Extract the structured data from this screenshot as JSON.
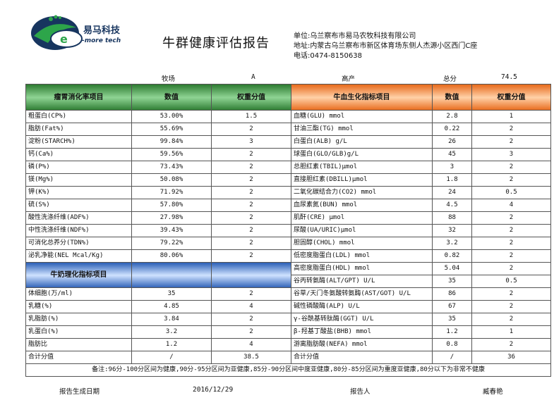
{
  "header": {
    "logo_text_cn": "易马科技",
    "logo_text_en": "-more tech",
    "title": "牛群健康评估报告",
    "company_line": "单位:乌兰察布市易马农牧科技有限公司",
    "address_line": "地址:内蒙古乌兰察布市新区体育场东侧人杰源小区西门C座",
    "phone_line": "电话:0474-8150638"
  },
  "meta": {
    "farm_label": "牧场",
    "farm_value": "A",
    "stage_value": "高产",
    "total_label": "总分",
    "total_value": "74.5"
  },
  "left_headers": {
    "item": "瘤胃消化率项目",
    "value": "数值",
    "weight": "权重分值"
  },
  "right_headers": {
    "item": "牛血生化指标项目",
    "value": "数值",
    "weight": "权重分值"
  },
  "milk_header": "牛奶理化指标项目",
  "rows": [
    {
      "l_item": "粗蛋白(CP%)",
      "l_val": "53.00%",
      "l_w": "1.5",
      "r_item": "血糖(GLU) mmol",
      "r_val": "2.8",
      "r_w": "1"
    },
    {
      "l_item": "脂肪(Fat%)",
      "l_val": "55.69%",
      "l_w": "2",
      "r_item": "甘油三酯(TG) mmol",
      "r_val": "0.22",
      "r_w": "2"
    },
    {
      "l_item": "淀粉(STARCH%)",
      "l_val": "99.84%",
      "l_w": "3",
      "r_item": "白蛋白(ALB) g/L",
      "r_val": "26",
      "r_w": "2"
    },
    {
      "l_item": "钙(Ca%)",
      "l_val": "59.56%",
      "l_w": "2",
      "r_item": "球蛋白(GLO/GLB)g/L",
      "r_val": "45",
      "r_w": "3"
    },
    {
      "l_item": "磷(P%)",
      "l_val": "73.43%",
      "l_w": "2",
      "r_item": "总胆红素(TBIL)μmol",
      "r_val": "3",
      "r_w": "2"
    },
    {
      "l_item": "镁(Mg%)",
      "l_val": "50.08%",
      "l_w": "2",
      "r_item": "直接胆红素(DBILL)μmol",
      "r_val": "1.8",
      "r_w": "2"
    },
    {
      "l_item": "钾(K%)",
      "l_val": "71.92%",
      "l_w": "2",
      "r_item": "二氧化碳结合力(CO2) mmol",
      "r_val": "24",
      "r_w": "0.5"
    },
    {
      "l_item": "硫(S%)",
      "l_val": "57.80%",
      "l_w": "2",
      "r_item": "血尿素氮(BUN) mmol",
      "r_val": "4.5",
      "r_w": "4"
    },
    {
      "l_item": "酸性洗涤纤维(ADF%)",
      "l_val": "27.98%",
      "l_w": "2",
      "r_item": "肌酐(CRE) μmol",
      "r_val": "88",
      "r_w": "2"
    },
    {
      "l_item": "中性洗涤纤维(NDF%)",
      "l_val": "39.43%",
      "l_w": "2",
      "r_item": "尿酸(UA/URIC)μmol",
      "r_val": "32",
      "r_w": "2"
    },
    {
      "l_item": "可消化总养分(TDN%)",
      "l_val": "79.22%",
      "l_w": "2",
      "r_item": "胆固醇(CHOL) mmol",
      "r_val": "3.2",
      "r_w": "2"
    },
    {
      "l_item": "泌乳净能(NEL Mcal/Kg)",
      "l_val": "80.06%",
      "l_w": "2",
      "r_item": "低密度脂蛋白(LDL) mmol",
      "r_val": "0.82",
      "r_w": "2"
    }
  ],
  "milk_right_rows": [
    {
      "r_item": "高密度脂蛋白(HDL) mmol",
      "r_val": "5.04",
      "r_w": "2"
    },
    {
      "r_item": "谷丙转氨酶(ALT/GPT) U/L",
      "r_val": "35",
      "r_w": "0.5"
    }
  ],
  "milk_rows": [
    {
      "l_item": "体细胞(万/ml)",
      "l_val": "35",
      "l_w": "2",
      "r_item": "谷草/天门冬氨酸转氨酶(AST/GOT) U/L",
      "r_val": "86",
      "r_w": "2"
    },
    {
      "l_item": "乳糖(%)",
      "l_val": "4.85",
      "l_w": "4",
      "r_item": "碱性磷酸酶(ALP) U/L",
      "r_val": "67",
      "r_w": "2"
    },
    {
      "l_item": "乳脂肪(%)",
      "l_val": "3.84",
      "l_w": "2",
      "r_item": "γ-谷酰基转肽酶(GGT) U/L",
      "r_val": "35",
      "r_w": "2"
    },
    {
      "l_item": "乳蛋白(%)",
      "l_val": "3.2",
      "l_w": "2",
      "r_item": "β-羟基丁酸盐(BHB) mmol",
      "r_val": "1.2",
      "r_w": "1"
    },
    {
      "l_item": "脂肪比",
      "l_val": "1.2",
      "l_w": "4",
      "r_item": "游离脂肪酸(NEFA) mmol",
      "r_val": "0.8",
      "r_w": "2"
    }
  ],
  "total_row": {
    "l_item": "合计分值",
    "l_val": "/",
    "l_w": "38.5",
    "r_item": "合计分值",
    "r_val": "/",
    "r_w": "36"
  },
  "note": "备注:96分-100分区间为健康,90分-95分区间为亚健康,85分-90分区间中度亚健康,80分-85分区间为重度亚健康,80分以下为非常不健康",
  "footer": {
    "date_label": "报告生成日期",
    "date_value": "2016/12/29",
    "reporter_label": "报告人",
    "reporter_value": "臧春艳"
  }
}
